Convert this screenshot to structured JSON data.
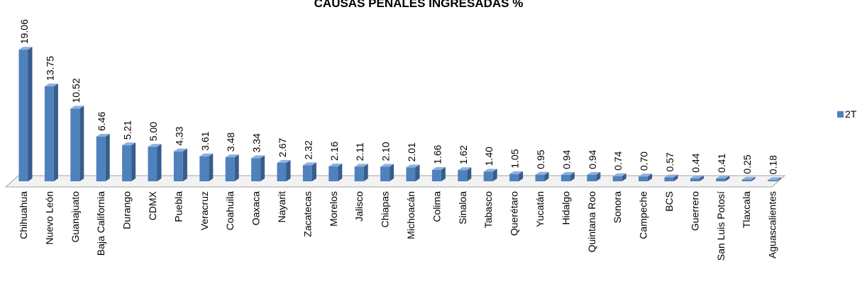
{
  "chart_data": {
    "type": "bar3d",
    "title": "CAUSAS PENALES INGRESADAS %",
    "categories": [
      "Chihuahua",
      "Nuevo León",
      "Guanajuato",
      "Baja California",
      "Durango",
      "CDMX",
      "Puebla",
      "Veracruz",
      "Coahuila",
      "Oaxaca",
      "Nayarit",
      "Zacatecas",
      "Morelos",
      "Jalisco",
      "Chiapas",
      "Michoacán",
      "Colima",
      "Sinaloa",
      "Tabasco",
      "Querétaro",
      "Yucatán",
      "Hidalgo",
      "Quintana Roo",
      "Sonora",
      "Campeche",
      "BCS",
      "Guerrero",
      "San Luis Potosí",
      "Tlaxcala",
      "Aguascalientes"
    ],
    "series": [
      {
        "name": "2T",
        "color": "#4f81bd",
        "values": [
          19.06,
          13.75,
          10.52,
          6.46,
          5.21,
          5.0,
          4.33,
          3.61,
          3.48,
          3.34,
          2.67,
          2.32,
          2.16,
          2.11,
          2.1,
          2.01,
          1.66,
          1.62,
          1.4,
          1.05,
          0.95,
          0.94,
          0.94,
          0.74,
          0.7,
          0.57,
          0.44,
          0.41,
          0.25,
          0.18
        ],
        "value_labels": [
          "19.06",
          "13.75",
          "10.52",
          "6.46",
          "5.21",
          "5.00",
          "4.33",
          "3.61",
          "3.48",
          "3.34",
          "2.67",
          "2.32",
          "2.16",
          "2.11",
          "2.10",
          "2.01",
          "1.66",
          "1.62",
          "1.40",
          "1.05",
          "0.95",
          "0.94",
          "0.94",
          "0.74",
          "0.70",
          "0.57",
          "0.44",
          "0.41",
          "0.25",
          "0.18"
        ]
      }
    ],
    "legend": "right"
  }
}
